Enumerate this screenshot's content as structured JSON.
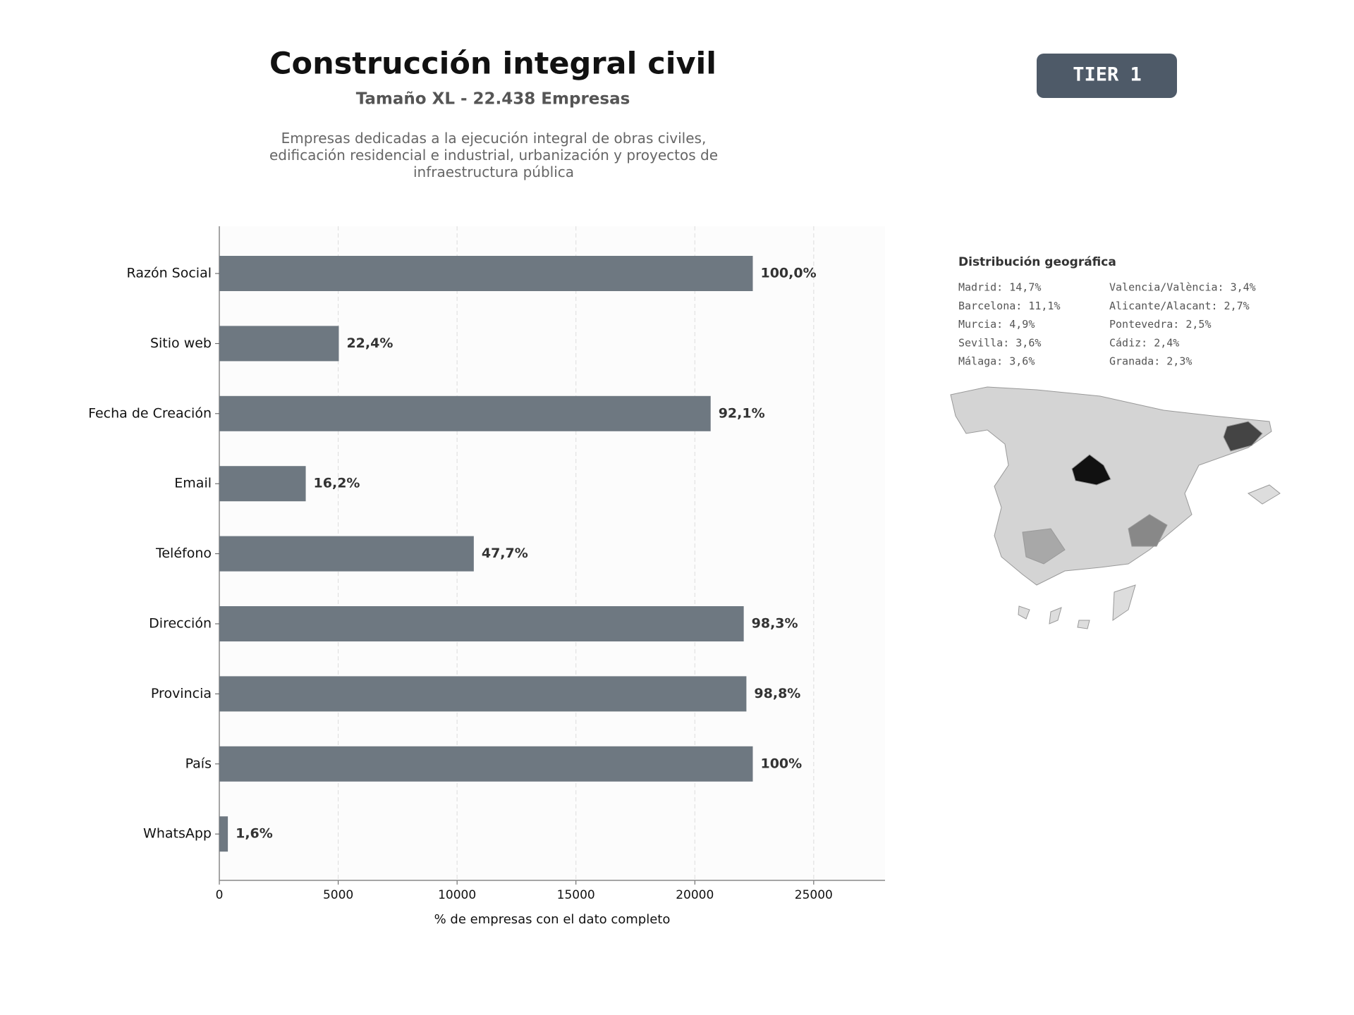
{
  "header": {
    "title": "Construcción integral civil",
    "subtitle": "Tamaño XL - 22.438 Empresas",
    "description": "Empresas dedicadas a la ejecución integral de obras civiles, edificación residencial e industrial, urbanización y proyectos de infraestructura pública"
  },
  "badge": "TIER 1",
  "geo": {
    "title": "Distribución geográfica",
    "items": [
      "Madrid: 14,7%",
      "Barcelona: 11,1%",
      "Murcia: 4,9%",
      "Sevilla: 3,6%",
      "Málaga: 3,6%",
      "Valencia/València: 3,4%",
      "Alicante/Alacant: 2,7%",
      "Pontevedra: 2,5%",
      "Cádiz: 2,4%",
      "Granada: 2,3%"
    ]
  },
  "chart_data": {
    "type": "barh",
    "xlabel": "% de empresas con el dato completo",
    "categories": [
      "Razón Social",
      "Sitio web",
      "Fecha de Creación",
      "Email",
      "Teléfono",
      "Dirección",
      "Provincia",
      "País",
      "WhatsApp"
    ],
    "values": [
      22438,
      5026,
      20665,
      3635,
      10703,
      22057,
      22169,
      22438,
      359
    ],
    "value_labels": [
      "100,0%",
      "22,4%",
      "92,1%",
      "16,2%",
      "47,7%",
      "98,3%",
      "98,8%",
      "100%",
      "1,6%"
    ],
    "color": "#6e7881",
    "xlim": [
      0,
      28000
    ],
    "xticks": [
      0,
      5000,
      10000,
      15000,
      20000,
      25000
    ],
    "grid": true
  }
}
